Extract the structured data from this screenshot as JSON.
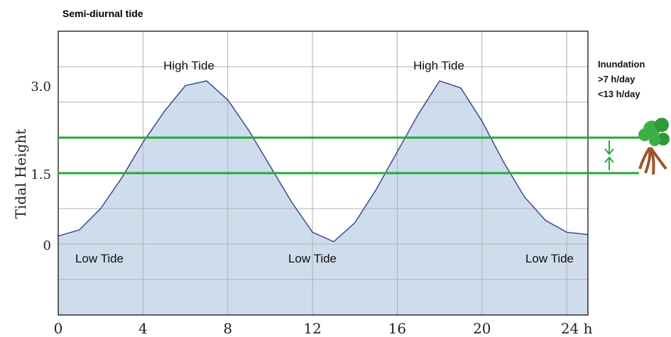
{
  "chart_data": {
    "type": "area",
    "title": "Semi-diurnal tide",
    "y_label": "Tidal Height",
    "x": [
      0,
      1,
      2,
      3,
      4,
      5,
      6,
      7,
      8,
      9,
      10,
      11,
      12,
      13,
      14,
      15,
      16,
      17,
      18,
      19,
      20,
      21,
      22,
      23,
      24,
      25
    ],
    "series": [
      {
        "name": "Tidal Height",
        "color": "#3a4a8e",
        "fill": "#cfdcec",
        "values": [
          0.17,
          0.3,
          0.75,
          1.4,
          2.15,
          2.8,
          3.35,
          3.45,
          3.05,
          2.4,
          1.65,
          0.9,
          0.25,
          0.05,
          0.45,
          1.15,
          1.95,
          2.75,
          3.45,
          3.3,
          2.6,
          1.75,
          1.0,
          0.5,
          0.25,
          0.2
        ]
      }
    ],
    "xlim": [
      0,
      25
    ],
    "xticks": [
      0,
      4,
      8,
      12,
      16,
      20,
      {
        "value": 24,
        "label": "24 h"
      }
    ],
    "ylim": [
      -1.5,
      4.5
    ],
    "yticks": [
      0,
      1.5,
      {
        "value": 3,
        "label": "3.0"
      }
    ],
    "ygrid": [
      -0.75,
      0,
      0.75,
      1.5,
      2.25,
      3,
      3.75
    ],
    "grid": true,
    "reference_lines": [
      {
        "value": 2.25,
        "color": "#22aa3a"
      },
      {
        "value": 1.5,
        "color": "#22aa3a"
      }
    ],
    "annotations": [
      "High Tide",
      "High Tide",
      "Low Tide",
      "Low Tide",
      "Low Tide",
      "Inundation",
      ">7 h/day",
      "<13 h/day"
    ]
  }
}
